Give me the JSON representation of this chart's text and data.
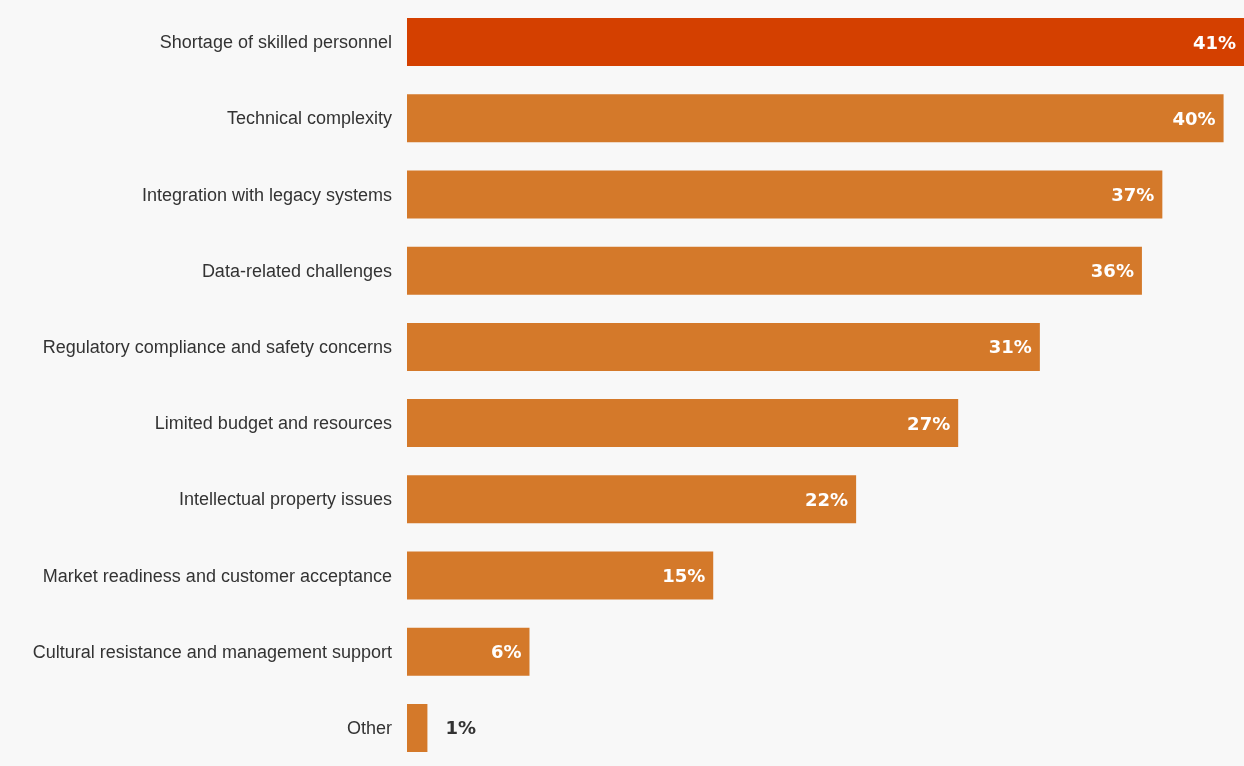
{
  "chart_data": {
    "type": "bar",
    "orientation": "horizontal",
    "categories": [
      "Shortage of skilled personnel",
      "Technical complexity",
      "Integration with legacy systems",
      "Data-related challenges",
      "Regulatory compliance and safety concerns",
      "Limited budget and resources",
      "Intellectual property issues",
      "Market readiness and customer acceptance",
      "Cultural resistance and management support",
      "Other"
    ],
    "values": [
      41,
      40,
      37,
      36,
      31,
      27,
      22,
      15,
      6,
      1
    ],
    "colors": [
      "#d44000",
      "#d4792a",
      "#d4792a",
      "#d4792a",
      "#d4792a",
      "#d4792a",
      "#d4792a",
      "#d4792a",
      "#d4792a",
      "#d4792a"
    ],
    "value_labels": [
      "41%",
      "40%",
      "37%",
      "36%",
      "31%",
      "27%",
      "22%",
      "15%",
      "6%",
      "1%"
    ],
    "grid": false
  }
}
